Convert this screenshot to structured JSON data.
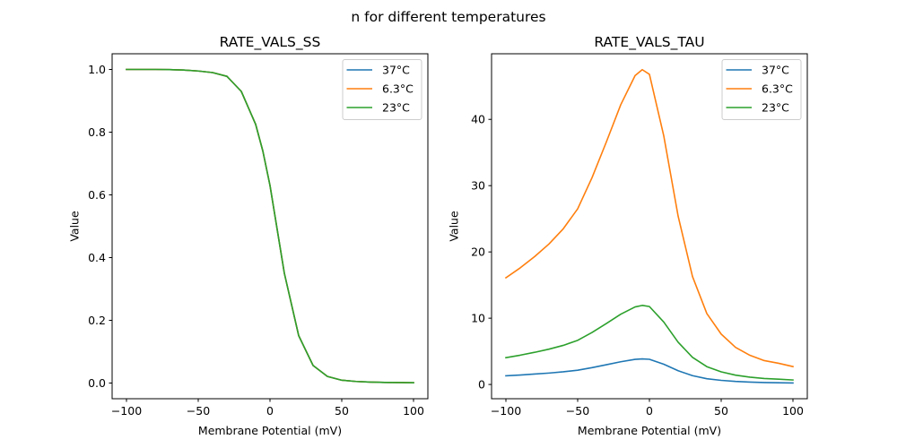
{
  "chart_data": {
    "suptitle": "n for different temperatures",
    "subplots": [
      {
        "type": "line",
        "title": "RATE_VALS_SS",
        "xlabel": "Membrane Potential (mV)",
        "ylabel": "Value",
        "xlim": [
          -110,
          110
        ],
        "ylim": [
          -0.05,
          1.05
        ],
        "xticks": [
          -100,
          -50,
          0,
          50,
          100
        ],
        "xtick_labels": [
          "−100",
          "−50",
          "0",
          "50",
          "100"
        ],
        "yticks": [
          0.0,
          0.2,
          0.4,
          0.6,
          0.8,
          1.0
        ],
        "ytick_labels": [
          "0.0",
          "0.2",
          "0.4",
          "0.6",
          "0.8",
          "1.0"
        ],
        "grid": false,
        "legend_position": "top-right",
        "x": [
          -100,
          -90,
          -80,
          -70,
          -60,
          -50,
          -40,
          -30,
          -20,
          -10,
          -5,
          0,
          10,
          20,
          30,
          40,
          50,
          60,
          70,
          80,
          90,
          100
        ],
        "series": [
          {
            "name": "37°C",
            "color": "#1f77b4",
            "values": [
              1.0,
              1.0,
              1.0,
              0.9995,
              0.998,
              0.995,
              0.99,
              0.978,
              0.93,
              0.825,
              0.74,
              0.63,
              0.35,
              0.151,
              0.056,
              0.021,
              0.009,
              0.005,
              0.003,
              0.002,
              0.0015,
              0.001
            ]
          },
          {
            "name": "6.3°C",
            "color": "#ff7f0e",
            "values": [
              1.0,
              1.0,
              1.0,
              0.9995,
              0.998,
              0.995,
              0.99,
              0.978,
              0.93,
              0.825,
              0.74,
              0.63,
              0.35,
              0.151,
              0.056,
              0.021,
              0.009,
              0.005,
              0.003,
              0.002,
              0.0015,
              0.001
            ]
          },
          {
            "name": "23°C",
            "color": "#2ca02c",
            "values": [
              1.0,
              1.0,
              1.0,
              0.9995,
              0.998,
              0.995,
              0.99,
              0.978,
              0.93,
              0.825,
              0.74,
              0.63,
              0.35,
              0.151,
              0.056,
              0.021,
              0.009,
              0.005,
              0.003,
              0.002,
              0.0015,
              0.001
            ]
          }
        ]
      },
      {
        "type": "line",
        "title": "RATE_VALS_TAU",
        "xlabel": "Membrane Potential (mV)",
        "ylabel": "Value",
        "xlim": [
          -110,
          110
        ],
        "ylim": [
          -2.15,
          49.9
        ],
        "xticks": [
          -100,
          -50,
          0,
          50,
          100
        ],
        "xtick_labels": [
          "−100",
          "−50",
          "0",
          "50",
          "100"
        ],
        "yticks": [
          0,
          10,
          20,
          30,
          40
        ],
        "ytick_labels": [
          "0",
          "10",
          "20",
          "30",
          "40"
        ],
        "grid": false,
        "legend_position": "top-right",
        "x": [
          -100,
          -90,
          -80,
          -70,
          -60,
          -50,
          -40,
          -30,
          -20,
          -10,
          -5,
          0,
          10,
          20,
          30,
          40,
          50,
          60,
          70,
          80,
          90,
          100
        ],
        "series": [
          {
            "name": "37°C",
            "color": "#1f77b4",
            "values": [
              1.31,
              1.43,
              1.57,
              1.72,
              1.91,
              2.15,
              2.54,
              2.98,
              3.43,
              3.79,
              3.86,
              3.8,
              3.05,
              2.07,
              1.33,
              0.87,
              0.62,
              0.46,
              0.36,
              0.29,
              0.26,
              0.22
            ]
          },
          {
            "name": "6.3°C",
            "color": "#ff7f0e",
            "values": [
              16.1,
              17.6,
              19.3,
              21.2,
              23.5,
              26.5,
              31.2,
              36.6,
              42.2,
              46.6,
              47.5,
              46.8,
              37.5,
              25.4,
              16.3,
              10.7,
              7.6,
              5.6,
              4.4,
              3.6,
              3.2,
              2.7
            ]
          },
          {
            "name": "23°C",
            "color": "#2ca02c",
            "values": [
              4.05,
              4.42,
              4.85,
              5.33,
              5.9,
              6.66,
              7.84,
              9.2,
              10.6,
              11.7,
              11.93,
              11.76,
              9.42,
              6.38,
              4.1,
              2.69,
              1.91,
              1.41,
              1.1,
              0.9,
              0.8,
              0.68
            ]
          }
        ]
      }
    ]
  }
}
